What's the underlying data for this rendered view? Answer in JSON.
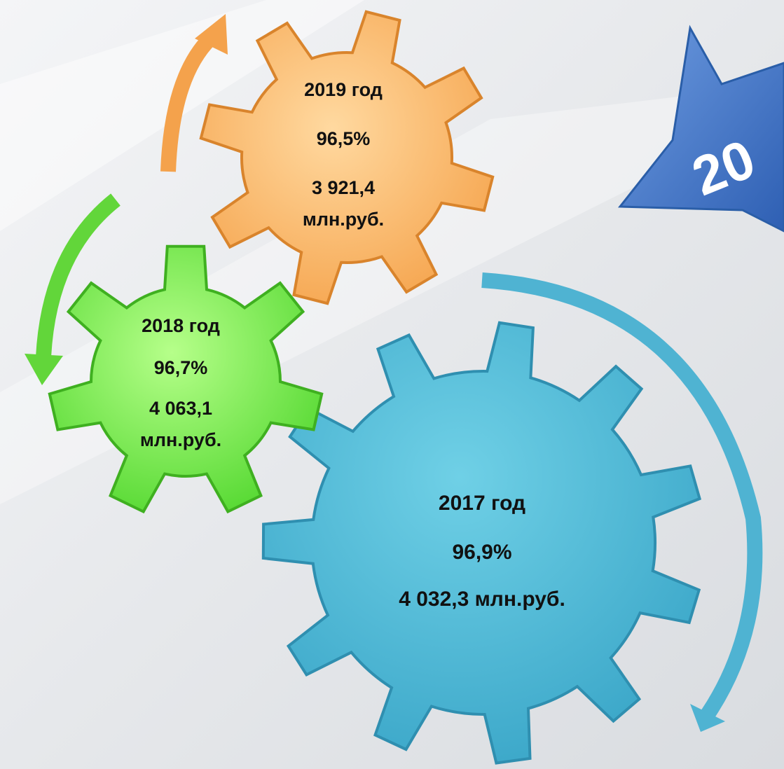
{
  "badge": "20",
  "gears": [
    {
      "year": "2019 год",
      "percent": "96,5%",
      "amount": [
        "3 921,4",
        "млн.руб."
      ]
    },
    {
      "year": "2018 год",
      "percent": "96,7%",
      "amount": [
        "4 063,1",
        "млн.руб."
      ]
    },
    {
      "year": "2017 год",
      "percent": "96,9%",
      "amount": [
        "4 032,3 млн.руб."
      ]
    }
  ]
}
